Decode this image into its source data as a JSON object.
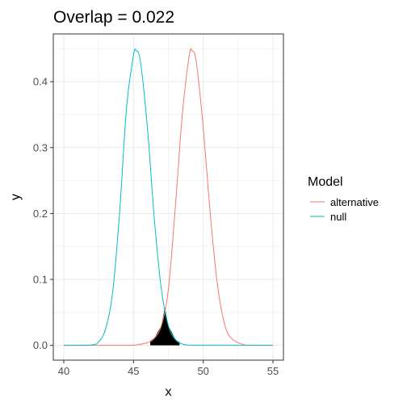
{
  "chart_data": {
    "type": "line",
    "title": "Overlap = 0.022",
    "xlabel": "x",
    "ylabel": "y",
    "xlim": [
      40,
      55
    ],
    "ylim": [
      0,
      0.45
    ],
    "x_ticks": [
      "40",
      "45",
      "50",
      "55"
    ],
    "y_ticks": [
      "0.0",
      "0.1",
      "0.2",
      "0.3",
      "0.4"
    ],
    "grid": true,
    "legend_position": "right",
    "legend": {
      "title": "Model",
      "entries": [
        "alternative",
        "null"
      ]
    },
    "series": [
      {
        "name": "alternative",
        "color": "#F8766D",
        "x": [
          40,
          44,
          45,
          46,
          46.5,
          47,
          47.5,
          48,
          48.5,
          49,
          49.2,
          49.5,
          50,
          50.5,
          51,
          51.5,
          52,
          53,
          54,
          55
        ],
        "y": [
          0,
          0,
          0.0002,
          0.004,
          0.011,
          0.03,
          0.085,
          0.21,
          0.35,
          0.44,
          0.447,
          0.43,
          0.33,
          0.2,
          0.095,
          0.035,
          0.011,
          0.0005,
          0,
          0
        ]
      },
      {
        "name": "null",
        "color": "#00BFC4",
        "x": [
          40,
          41,
          42,
          42.5,
          43,
          43.5,
          44,
          44.5,
          45,
          45.2,
          45.5,
          46,
          46.5,
          47,
          47.5,
          48,
          48.5,
          49,
          50,
          55
        ],
        "y": [
          0,
          0,
          0.0006,
          0.005,
          0.025,
          0.08,
          0.2,
          0.36,
          0.44,
          0.447,
          0.43,
          0.33,
          0.19,
          0.085,
          0.03,
          0.009,
          0.002,
          0.0003,
          0,
          0
        ]
      }
    ],
    "overlap_region": {
      "color": "#000000",
      "x_range": [
        46.2,
        48.3
      ]
    }
  }
}
